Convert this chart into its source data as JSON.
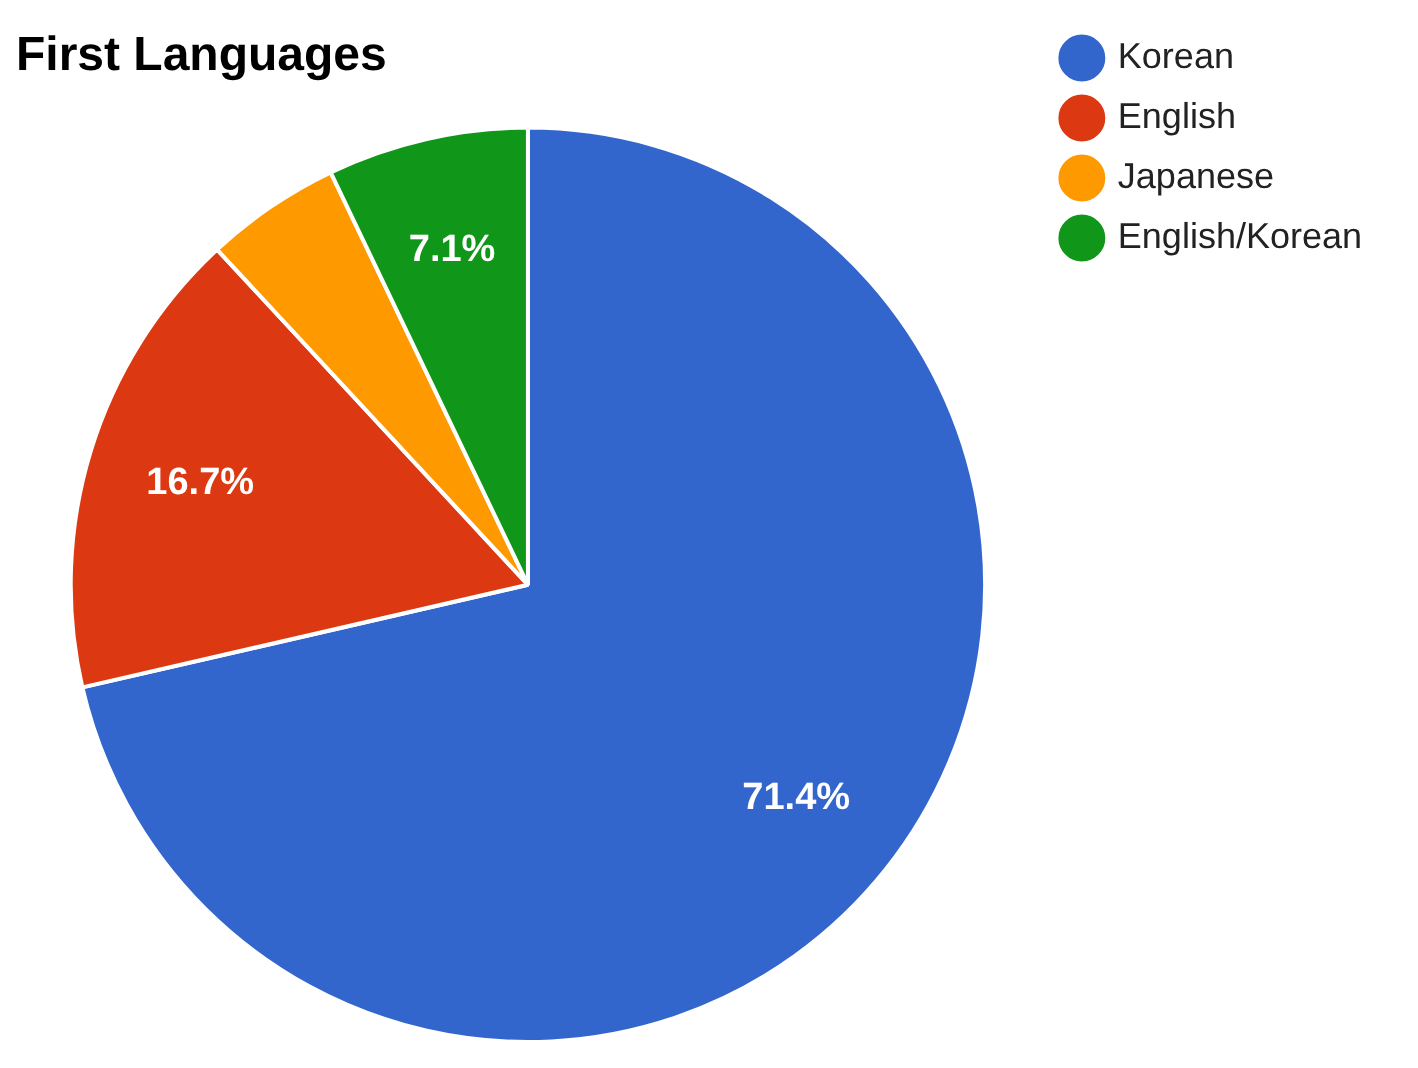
{
  "chart_data": {
    "type": "pie",
    "title": "First Languages",
    "categories": [
      "Korean",
      "English",
      "Japanese",
      "English/Korean"
    ],
    "values": [
      71.4,
      16.7,
      4.8,
      7.1
    ],
    "colors": [
      "#3366cc",
      "#dc3912",
      "#ff9900",
      "#109618"
    ],
    "value_labels": [
      "71.4%",
      "16.7%",
      null,
      "7.1%"
    ],
    "legend": "right"
  }
}
